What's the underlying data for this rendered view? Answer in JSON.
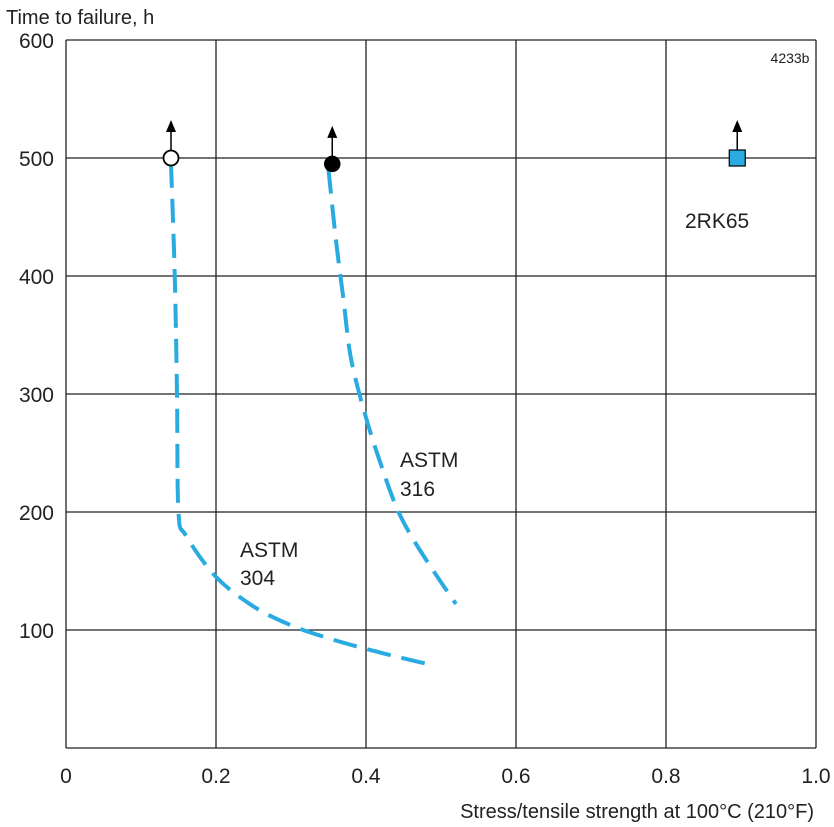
{
  "chart_data": {
    "type": "line",
    "ylabel": "Time to failure, h",
    "xlabel": "Stress/tensile strength at 100°C (210°F)",
    "figure_code": "4233b",
    "xlim": [
      0,
      1.0
    ],
    "ylim": [
      0,
      600
    ],
    "x_ticks": [
      0,
      0.2,
      0.4,
      0.6,
      0.8,
      1.0
    ],
    "x_tick_labels": [
      "0",
      "0.2",
      "0.4",
      "0.6",
      "0.8",
      "1.0"
    ],
    "y_ticks": [
      100,
      200,
      300,
      400,
      500,
      600
    ],
    "y_tick_labels": [
      "100",
      "200",
      "300",
      "400",
      "500",
      "600"
    ],
    "grid": true,
    "colors": {
      "curve": "#29abe2",
      "marker_square": "#29abe2",
      "grid": "#222222"
    },
    "series": [
      {
        "label_lines": [
          "ASTM",
          "304"
        ],
        "line_style": "dashed",
        "x": [
          0.14,
          0.145,
          0.148,
          0.15,
          0.16,
          0.2,
          0.25,
          0.3,
          0.35,
          0.4,
          0.45,
          0.49
        ],
        "y": [
          495,
          400,
          300,
          200,
          180,
          145,
          120,
          104,
          93,
          84,
          76,
          70
        ],
        "end_marker": {
          "x": 0.14,
          "y": 500,
          "shape": "circle-open",
          "arrow": "up"
        }
      },
      {
        "label_lines": [
          "ASTM",
          "316"
        ],
        "line_style": "dashed",
        "x": [
          0.35,
          0.36,
          0.37,
          0.38,
          0.4,
          0.42,
          0.44,
          0.46,
          0.49,
          0.52
        ],
        "y": [
          490,
          430,
          380,
          330,
          280,
          240,
          205,
          180,
          150,
          122
        ],
        "end_marker": {
          "x": 0.355,
          "y": 495,
          "shape": "circle-filled",
          "arrow": "up"
        }
      },
      {
        "label_lines": [
          "2RK65"
        ],
        "line_style": "none",
        "x": [
          0.895
        ],
        "y": [
          500
        ],
        "end_marker": {
          "x": 0.895,
          "y": 500,
          "shape": "square",
          "arrow": "up"
        }
      }
    ]
  }
}
